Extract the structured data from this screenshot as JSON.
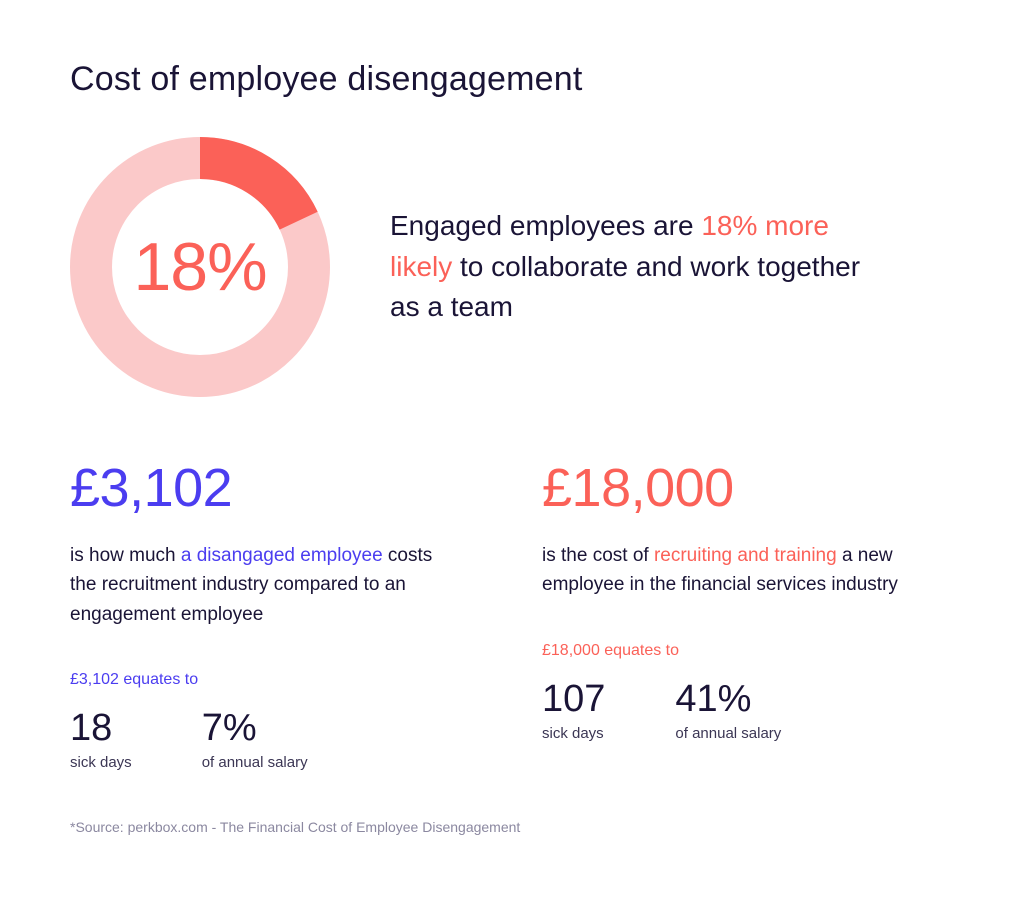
{
  "colors": {
    "dark": "#1a1436",
    "purple": "#4b3df0",
    "coral": "#fb6158",
    "coral_light": "#fbc9c9",
    "grey": "#8b88a0",
    "bg": "#ffffff"
  },
  "title": "Cost of employee disengagement",
  "hero": {
    "donut": {
      "percent": 18,
      "center_label": "18%",
      "ring_color": "#fbc9c9",
      "segment_color": "#fb6158",
      "ring_thickness": 42,
      "outer_radius": 130,
      "start_angle_deg": 0,
      "center_text_color": "#fb6158",
      "center_fontsize": 68
    },
    "text": {
      "pre": "Engaged employees are ",
      "highlight": "18% more likely",
      "post": " to collaborate and work together as a team",
      "highlight_color": "#fb6158",
      "fontsize": 28
    }
  },
  "left": {
    "value": "£3,102",
    "value_color": "#4b3df0",
    "value_fontsize": 54,
    "desc_pre": "is how much ",
    "desc_hl": "a disangaged employee",
    "desc_post": " costs the recruitment industry compared to an engagement employee",
    "desc_hl_color": "#4b3df0",
    "equates": "£3,102 equates to",
    "equates_color": "#4b3df0",
    "metrics": [
      {
        "value": "18",
        "label": "sick days"
      },
      {
        "value": "7%",
        "label": "of annual salary"
      }
    ]
  },
  "right": {
    "value": "£18,000",
    "value_color": "#fb6158",
    "value_fontsize": 54,
    "desc_pre": "is the cost of ",
    "desc_hl": "recruiting and training",
    "desc_post": " a new employee in the financial services industry",
    "desc_hl_color": "#fb6158",
    "equates": "£18,000 equates to",
    "equates_color": "#fb6158",
    "metrics": [
      {
        "value": "107",
        "label": "sick days"
      },
      {
        "value": "41%",
        "label": "of annual salary"
      }
    ]
  },
  "source": "*Source: perkbox.com - The Financial Cost of Employee Disengagement"
}
